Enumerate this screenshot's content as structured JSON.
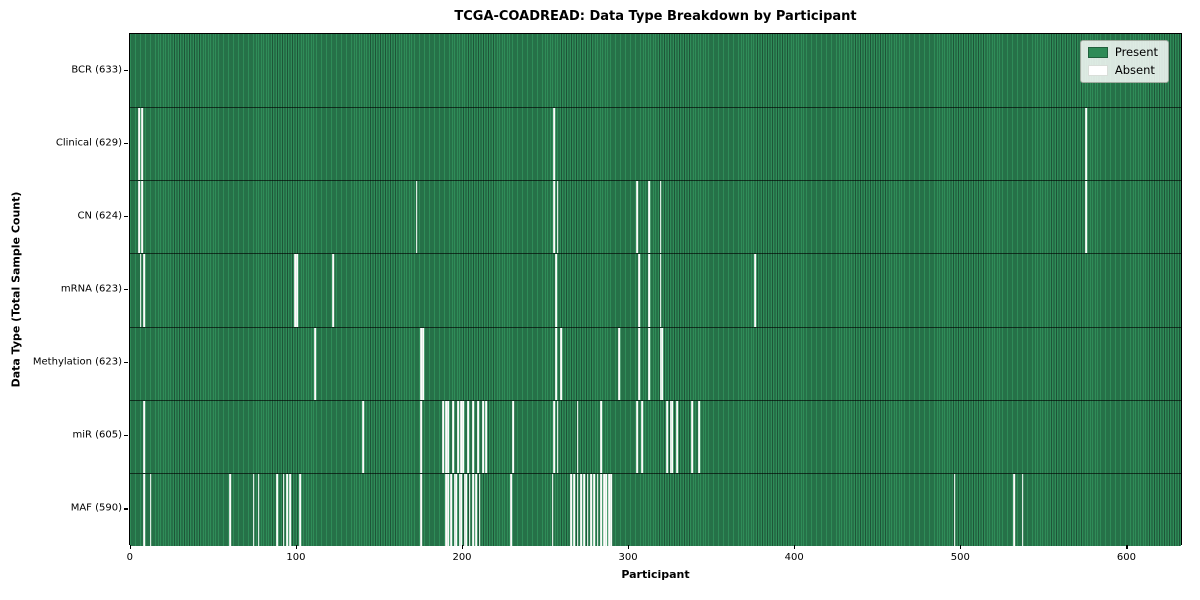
{
  "figure": {
    "background_color": "#ffffff"
  },
  "chart_data": {
    "type": "heatmap",
    "title": "TCGA-COADREAD: Data Type Breakdown by Participant",
    "xlabel": "Participant",
    "ylabel": "Data Type (Total Sample Count)",
    "x_min": -0.5,
    "x_max": 633.5,
    "x_ticks": [
      0,
      100,
      200,
      300,
      400,
      500,
      600
    ],
    "total_participants": 633,
    "grid": false,
    "legend_position": "upper right",
    "legend": [
      {
        "label": "Present",
        "color": "#2e8b57"
      },
      {
        "label": "Absent",
        "color": "#ffffff"
      }
    ],
    "colors": {
      "present": "#2e8b57",
      "present_edge": "#1e5638",
      "absent": "#ffffff",
      "axis": "#000000"
    },
    "rows": [
      {
        "name": "BCR",
        "total": 633,
        "label": "BCR (633)",
        "absent_participants": []
      },
      {
        "name": "Clinical",
        "total": 629,
        "label": "Clinical (629)",
        "absent_participants": [
          5,
          7,
          255,
          575
        ]
      },
      {
        "name": "CN",
        "total": 624,
        "label": "CN (624)",
        "absent_participants": [
          5,
          7,
          172,
          255,
          257,
          305,
          312,
          319,
          575
        ]
      },
      {
        "name": "mRNA",
        "total": 623,
        "label": "mRNA (623)",
        "absent_participants": [
          6,
          8,
          99,
          100,
          122,
          256,
          306,
          312,
          319,
          376
        ]
      },
      {
        "name": "Methylation",
        "total": 623,
        "label": "Methylation (623)",
        "absent_participants": [
          111,
          175,
          176,
          256,
          259,
          294,
          306,
          312,
          319,
          320
        ]
      },
      {
        "name": "miR",
        "total": 605,
        "label": "miR (605)",
        "absent_participants": [
          8,
          140,
          175,
          188,
          190,
          191,
          194,
          197,
          199,
          200,
          203,
          206,
          209,
          212,
          214,
          230,
          255,
          257,
          269,
          283,
          305,
          308,
          323,
          325,
          326,
          329,
          338,
          342
        ]
      },
      {
        "name": "MAF",
        "total": 590,
        "label": "MAF (590)",
        "absent_participants": [
          8,
          12,
          60,
          74,
          77,
          88,
          92,
          94,
          96,
          102,
          175,
          190,
          191,
          193,
          195,
          196,
          198,
          199,
          201,
          202,
          204,
          206,
          208,
          210,
          229,
          254,
          265,
          267,
          269,
          271,
          273,
          275,
          277,
          279,
          281,
          283,
          285,
          286,
          288,
          289,
          496,
          532,
          537
        ]
      }
    ]
  }
}
